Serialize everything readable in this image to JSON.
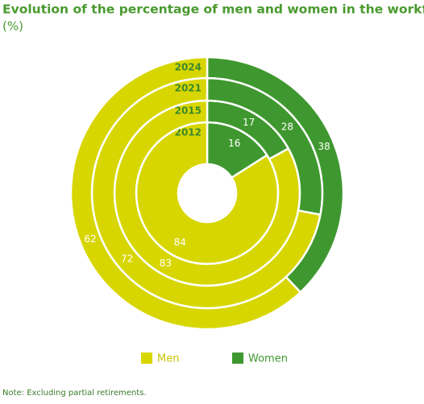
{
  "chart_data": {
    "type": "ring-donut",
    "title": "Evolution of the percentage of men and women in the workforce",
    "subtitle": "(%)",
    "categories": [
      "2012",
      "2015",
      "2021",
      "2024"
    ],
    "series": [
      {
        "name": "Men",
        "color": "#d8d600",
        "values": [
          84,
          83,
          72,
          62
        ]
      },
      {
        "name": "Women",
        "color": "#3f982f",
        "values": [
          16,
          17,
          28,
          38
        ]
      }
    ],
    "note": "Note: Excluding partial retirements."
  }
}
